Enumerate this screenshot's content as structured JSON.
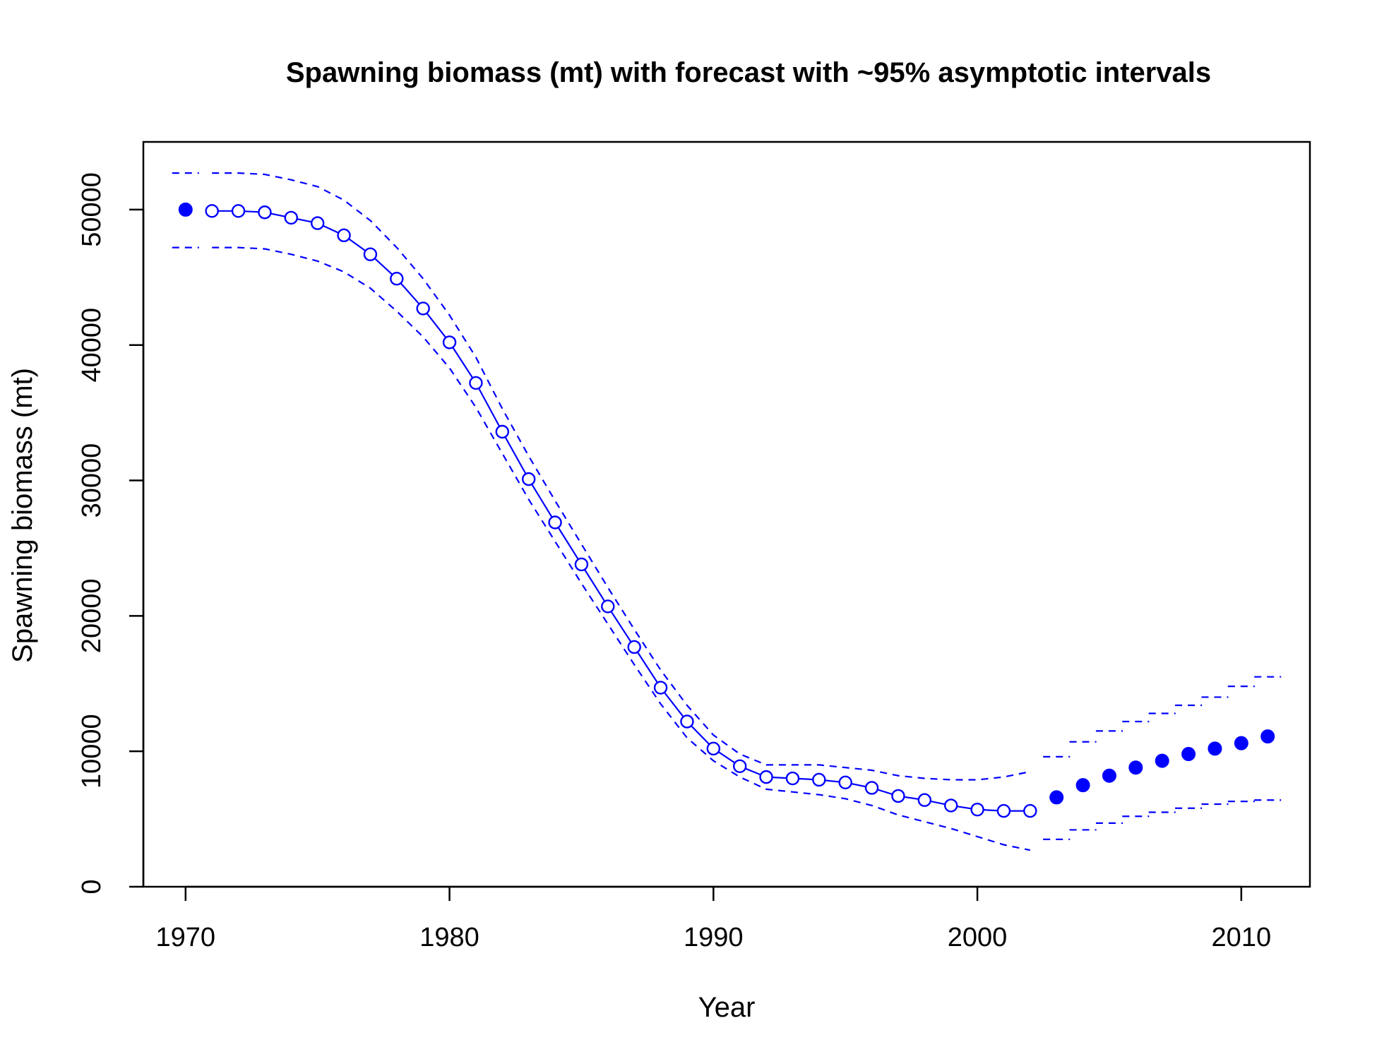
{
  "chart_data": {
    "type": "line",
    "title": "Spawning biomass (mt) with forecast with ~95% asymptotic intervals",
    "xlabel": "Year",
    "ylabel": "Spawning biomass (mt)",
    "xlim": [
      1968.4,
      2012.6
    ],
    "ylim": [
      0,
      55000
    ],
    "x_ticks": [
      1970,
      1980,
      1990,
      2000,
      2010
    ],
    "x_tick_labels": [
      "1970",
      "1980",
      "1990",
      "2000",
      "2010"
    ],
    "y_ticks": [
      0,
      10000,
      20000,
      30000,
      40000,
      50000
    ],
    "y_tick_labels": [
      "0",
      "10000",
      "20000",
      "30000",
      "40000",
      "50000"
    ],
    "colors": {
      "series": "#0000ff",
      "frame": "#000000"
    },
    "series": [
      {
        "role": "virgin",
        "x": [
          1970
        ],
        "y": [
          50000
        ],
        "upper": [
          52700
        ],
        "lower": [
          47200
        ]
      },
      {
        "role": "estimated",
        "x": [
          1971,
          1972,
          1973,
          1974,
          1975,
          1976,
          1977,
          1978,
          1979,
          1980,
          1981,
          1982,
          1983,
          1984,
          1985,
          1986,
          1987,
          1988,
          1989,
          1990,
          1991,
          1992,
          1993,
          1994,
          1995,
          1996,
          1997,
          1998,
          1999,
          2000,
          2001,
          2002
        ],
        "y": [
          49900,
          49900,
          49800,
          49400,
          49000,
          48100,
          46700,
          44900,
          42700,
          40200,
          37200,
          33600,
          30100,
          26900,
          23800,
          20700,
          17700,
          14700,
          12200,
          10200,
          8900,
          8100,
          8000,
          7900,
          7700,
          7300,
          6700,
          6400,
          6000,
          5700,
          5600,
          5600
        ],
        "upper": [
          52700,
          52700,
          52600,
          52200,
          51700,
          50700,
          49200,
          47200,
          44900,
          42200,
          39100,
          35300,
          31800,
          28500,
          25300,
          22100,
          19000,
          16000,
          13400,
          11200,
          9800,
          9000,
          9000,
          9000,
          8800,
          8600,
          8200,
          8000,
          7900,
          7900,
          8100,
          8500
        ],
        "lower": [
          47200,
          47200,
          47100,
          46700,
          46200,
          45400,
          44200,
          42500,
          40600,
          38300,
          35400,
          32000,
          28600,
          25500,
          22400,
          19400,
          16400,
          13500,
          11000,
          9300,
          8100,
          7200,
          7000,
          6800,
          6500,
          6000,
          5300,
          4800,
          4300,
          3700,
          3100,
          2700
        ]
      },
      {
        "role": "forecast",
        "x": [
          2003,
          2004,
          2005,
          2006,
          2007,
          2008,
          2009,
          2010,
          2011
        ],
        "y": [
          6600,
          7500,
          8200,
          8800,
          9300,
          9800,
          10200,
          10600,
          11100
        ],
        "upper": [
          9600,
          10700,
          11500,
          12200,
          12800,
          13400,
          14000,
          14800,
          15500
        ],
        "lower": [
          3500,
          4200,
          4700,
          5200,
          5500,
          5800,
          6100,
          6300,
          6400
        ]
      }
    ]
  }
}
